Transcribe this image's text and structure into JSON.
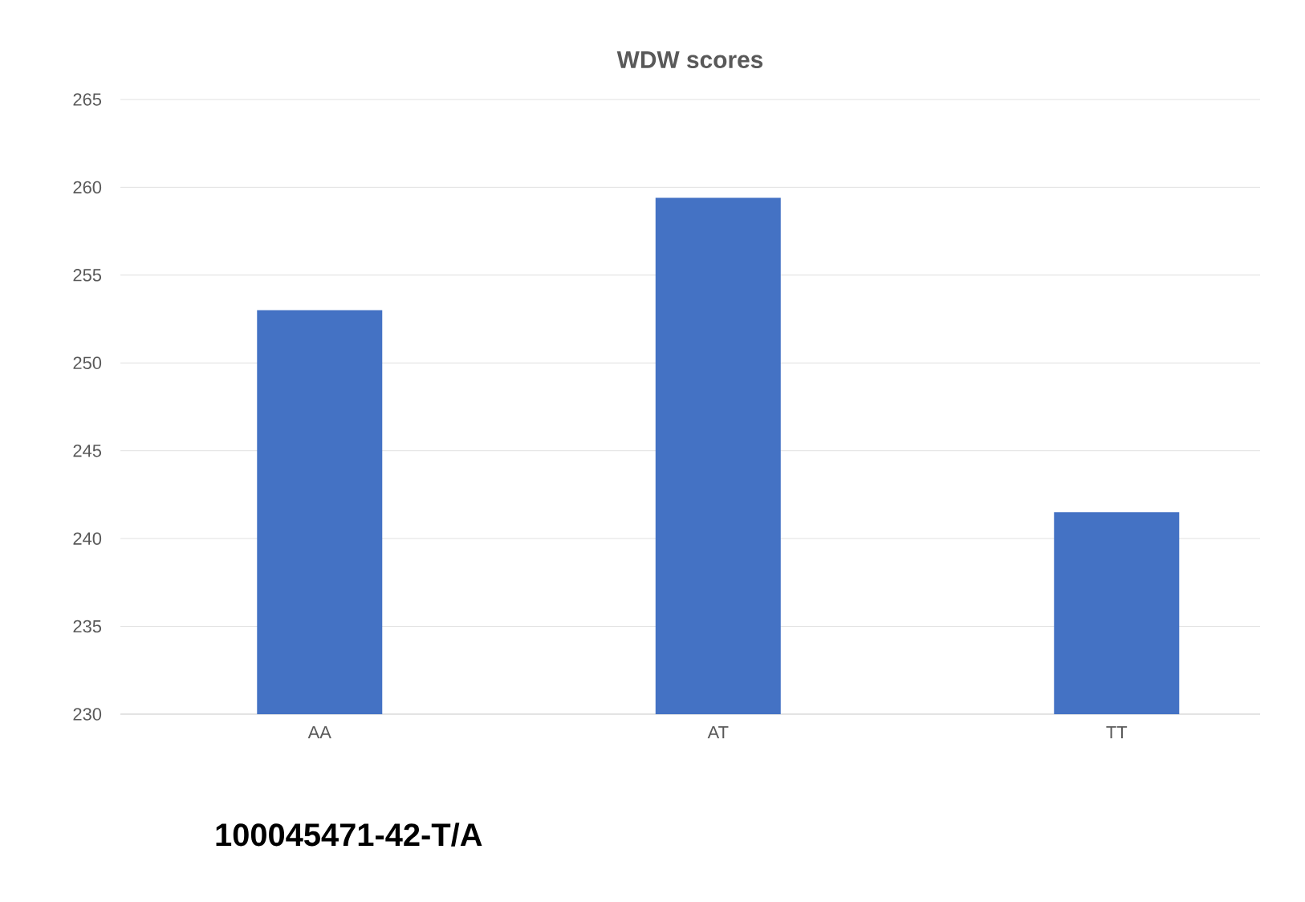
{
  "chart_data": {
    "type": "bar",
    "title": "WDW scores",
    "categories": [
      "AA",
      "AT",
      "TT"
    ],
    "values": [
      253.0,
      259.4,
      241.5
    ],
    "color": "#4472c4",
    "ylim": [
      230,
      265
    ],
    "yticks": [
      230,
      235,
      240,
      245,
      250,
      255,
      260,
      265
    ],
    "grid": "y",
    "annotations": [
      "100045471-42-T/A"
    ]
  }
}
